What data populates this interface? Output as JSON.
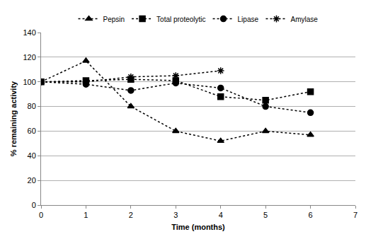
{
  "chart_data": {
    "type": "line",
    "x_label": "Time (months)",
    "y_label": "% remaining activity",
    "x": [
      0,
      1,
      2,
      3,
      4,
      5,
      6
    ],
    "series": [
      {
        "name": "Pepsin",
        "color": "#000000",
        "marker": "triangle-up",
        "line_style": "dot",
        "values": [
          100,
          117,
          80,
          60,
          52,
          60,
          57
        ]
      },
      {
        "name": "Total proteolytic",
        "color": "#000000",
        "marker": "square",
        "line_style": "dot",
        "values": [
          100,
          101,
          102,
          101,
          88,
          85,
          92
        ]
      },
      {
        "name": "Lipase",
        "color": "#000000",
        "marker": "circle",
        "line_style": "dot",
        "values": [
          100,
          98,
          93,
          99,
          95,
          80,
          75
        ]
      },
      {
        "name": "Amylase",
        "color": "#000000",
        "marker": "asterisk-open",
        "line_style": "dot",
        "values": [
          100,
          100,
          104,
          105,
          109,
          null,
          null
        ]
      }
    ],
    "xlim": [
      0,
      7
    ],
    "xticks": [
      0,
      1,
      2,
      3,
      4,
      5,
      6,
      7
    ],
    "ylim": [
      0,
      140
    ],
    "yticks": [
      0,
      20,
      40,
      60,
      80,
      100,
      120,
      140
    ],
    "grid": true,
    "legend": "top"
  }
}
